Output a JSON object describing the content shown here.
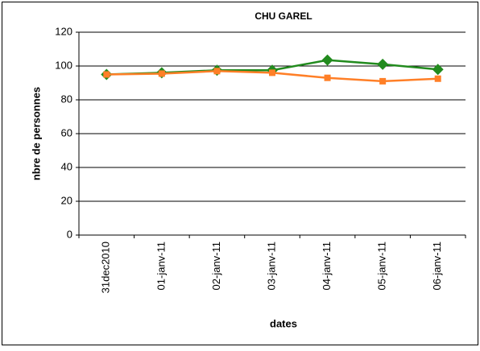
{
  "chart_data": {
    "type": "line",
    "title": "CHU GAREL",
    "categories": [
      "31dec2010",
      "01-janv-11",
      "02-janv-11",
      "03-janv-11",
      "04-janv-11",
      "05-janv-11",
      "06-janv-11"
    ],
    "series": [
      {
        "color": "#228b1e",
        "marker": "diamond",
        "values": [
          95,
          96,
          97.5,
          97.5,
          103.5,
          101,
          98
        ]
      },
      {
        "color": "#ff7f27",
        "marker": "square",
        "values": [
          95,
          95.5,
          97,
          96,
          93,
          91,
          92.5
        ]
      }
    ],
    "ylim": [
      0,
      120
    ],
    "yticks": [
      0,
      20,
      40,
      60,
      80,
      100,
      120
    ],
    "grid": true,
    "y_label": "nbre de personnes",
    "x_label": "dates"
  }
}
